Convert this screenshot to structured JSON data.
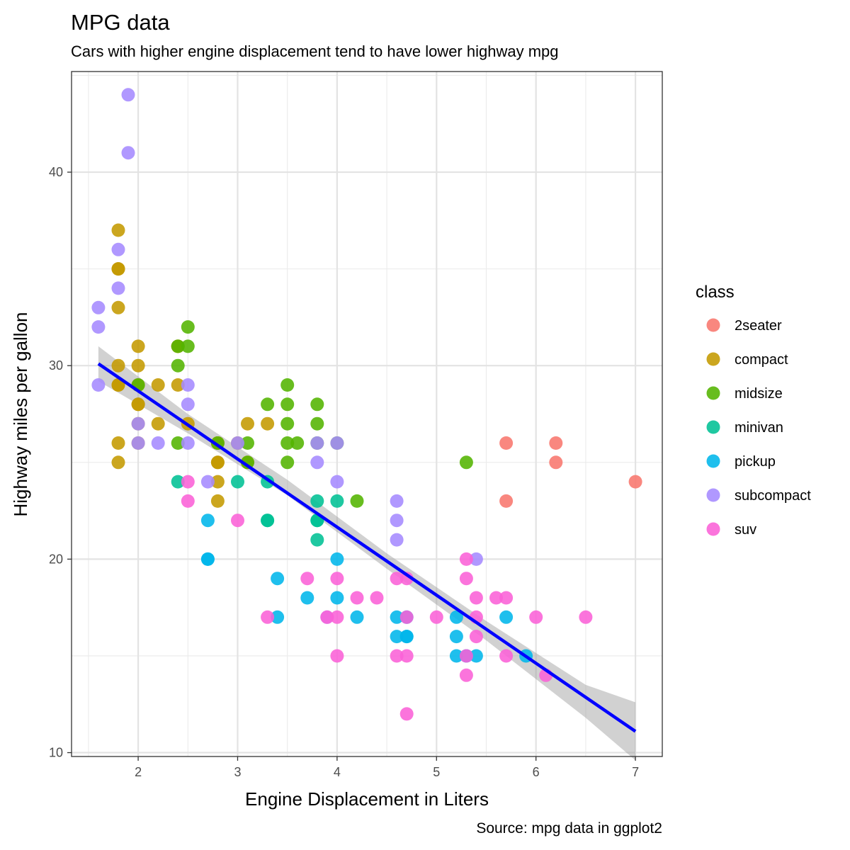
{
  "chart_data": {
    "type": "scatter",
    "title": "MPG data",
    "subtitle": "Cars with higher engine displacement tend to have lower highway mpg",
    "xlabel": "Engine Displacement in Liters",
    "ylabel": "Highway miles per gallon",
    "caption": "Source: mpg data in ggplot2",
    "xlim": [
      1.33,
      7.27
    ],
    "ylim": [
      9.8,
      45.2
    ],
    "x_ticks": [
      2,
      3,
      4,
      5,
      6,
      7
    ],
    "y_ticks": [
      10,
      20,
      30,
      40
    ],
    "grid": true,
    "legend": {
      "title": "class",
      "position": "right",
      "entries": [
        {
          "name": "2seater",
          "color": "#F8766D"
        },
        {
          "name": "compact",
          "color": "#C49A00"
        },
        {
          "name": "midsize",
          "color": "#53B400"
        },
        {
          "name": "minivan",
          "color": "#00C094"
        },
        {
          "name": "pickup",
          "color": "#00B6EB"
        },
        {
          "name": "subcompact",
          "color": "#A58AFF"
        },
        {
          "name": "suv",
          "color": "#FB61D7"
        }
      ]
    },
    "series": [
      {
        "name": "2seater",
        "color": "#F8766D",
        "points": [
          [
            5.7,
            26
          ],
          [
            5.7,
            23
          ],
          [
            6.2,
            26
          ],
          [
            6.2,
            25
          ],
          [
            7.0,
            24
          ]
        ]
      },
      {
        "name": "compact",
        "color": "#C49A00",
        "points": [
          [
            1.8,
            29
          ],
          [
            1.8,
            29
          ],
          [
            2.0,
            31
          ],
          [
            2.0,
            30
          ],
          [
            2.8,
            26
          ],
          [
            2.8,
            26
          ],
          [
            3.1,
            27
          ],
          [
            1.8,
            26
          ],
          [
            1.8,
            25
          ],
          [
            2.0,
            28
          ],
          [
            2.0,
            27
          ],
          [
            2.8,
            25
          ],
          [
            2.8,
            25
          ],
          [
            3.1,
            25
          ],
          [
            2.2,
            27
          ],
          [
            2.2,
            29
          ],
          [
            2.4,
            31
          ],
          [
            2.4,
            31
          ],
          [
            3.0,
            26
          ],
          [
            3.3,
            27
          ],
          [
            1.8,
            35
          ],
          [
            1.8,
            37
          ],
          [
            1.8,
            35
          ],
          [
            2.4,
            29
          ],
          [
            2.5,
            27
          ],
          [
            2.8,
            24
          ],
          [
            2.8,
            23
          ],
          [
            2.0,
            29
          ],
          [
            2.0,
            26
          ],
          [
            2.0,
            28
          ],
          [
            1.8,
            33
          ],
          [
            1.8,
            30
          ]
        ]
      },
      {
        "name": "midsize",
        "color": "#53B400",
        "points": [
          [
            3.1,
            26
          ],
          [
            2.4,
            30
          ],
          [
            2.4,
            31
          ],
          [
            3.5,
            26
          ],
          [
            2.5,
            32
          ],
          [
            2.5,
            31
          ],
          [
            3.5,
            29
          ],
          [
            3.5,
            28
          ],
          [
            3.8,
            28
          ],
          [
            3.8,
            27
          ],
          [
            3.8,
            26
          ],
          [
            4.2,
            23
          ],
          [
            5.3,
            25
          ],
          [
            2.4,
            26
          ],
          [
            3.5,
            27
          ],
          [
            3.5,
            25
          ],
          [
            3.6,
            26
          ],
          [
            3.3,
            28
          ],
          [
            4.0,
            26
          ],
          [
            2.8,
            26
          ],
          [
            3.1,
            25
          ],
          [
            2.0,
            29
          ]
        ]
      },
      {
        "name": "minivan",
        "color": "#00C094",
        "points": [
          [
            2.4,
            24
          ],
          [
            3.0,
            24
          ],
          [
            3.3,
            24
          ],
          [
            3.3,
            22
          ],
          [
            3.3,
            22
          ],
          [
            3.8,
            22
          ],
          [
            3.8,
            23
          ],
          [
            3.8,
            21
          ],
          [
            4.0,
            23
          ],
          [
            3.8,
            22
          ]
        ]
      },
      {
        "name": "pickup",
        "color": "#00B6EB",
        "points": [
          [
            2.7,
            20
          ],
          [
            2.7,
            20
          ],
          [
            2.7,
            22
          ],
          [
            3.4,
            17
          ],
          [
            3.4,
            19
          ],
          [
            3.7,
            18
          ],
          [
            4.0,
            20
          ],
          [
            4.0,
            18
          ],
          [
            4.2,
            17
          ],
          [
            4.6,
            17
          ],
          [
            4.6,
            16
          ],
          [
            4.7,
            16
          ],
          [
            4.7,
            17
          ],
          [
            4.7,
            16
          ],
          [
            5.2,
            16
          ],
          [
            5.2,
            15
          ],
          [
            5.4,
            15
          ],
          [
            5.7,
            17
          ],
          [
            5.9,
            15
          ],
          [
            5.3,
            15
          ],
          [
            5.2,
            17
          ]
        ]
      },
      {
        "name": "subcompact",
        "color": "#A58AFF",
        "points": [
          [
            1.9,
            44
          ],
          [
            1.9,
            41
          ],
          [
            1.6,
            33
          ],
          [
            1.6,
            32
          ],
          [
            1.6,
            29
          ],
          [
            1.8,
            36
          ],
          [
            1.8,
            34
          ],
          [
            2.0,
            27
          ],
          [
            2.0,
            26
          ],
          [
            2.2,
            26
          ],
          [
            2.5,
            29
          ],
          [
            2.5,
            28
          ],
          [
            2.5,
            26
          ],
          [
            2.7,
            24
          ],
          [
            3.0,
            26
          ],
          [
            3.8,
            25
          ],
          [
            3.8,
            26
          ],
          [
            4.0,
            26
          ],
          [
            4.0,
            24
          ],
          [
            4.6,
            23
          ],
          [
            4.6,
            22
          ],
          [
            4.6,
            21
          ],
          [
            5.4,
            20
          ],
          [
            3.9,
            17
          ]
        ]
      },
      {
        "name": "suv",
        "color": "#FB61D7",
        "points": [
          [
            2.5,
            24
          ],
          [
            2.5,
            23
          ],
          [
            3.0,
            22
          ],
          [
            3.3,
            17
          ],
          [
            3.7,
            19
          ],
          [
            3.9,
            17
          ],
          [
            4.0,
            19
          ],
          [
            4.0,
            17
          ],
          [
            4.0,
            15
          ],
          [
            4.2,
            18
          ],
          [
            4.4,
            18
          ],
          [
            4.6,
            19
          ],
          [
            4.6,
            15
          ],
          [
            4.7,
            19
          ],
          [
            4.7,
            17
          ],
          [
            4.7,
            15
          ],
          [
            4.7,
            12
          ],
          [
            5.0,
            17
          ],
          [
            5.3,
            20
          ],
          [
            5.3,
            19
          ],
          [
            5.3,
            15
          ],
          [
            5.3,
            14
          ],
          [
            5.4,
            18
          ],
          [
            5.4,
            17
          ],
          [
            5.4,
            16
          ],
          [
            5.6,
            18
          ],
          [
            5.7,
            18
          ],
          [
            5.7,
            15
          ],
          [
            6.0,
            17
          ],
          [
            6.1,
            14
          ],
          [
            6.5,
            17
          ]
        ]
      }
    ],
    "trend_line": {
      "type": "linear",
      "color": "#0000FF",
      "points": [
        [
          1.6,
          30.1
        ],
        [
          7.0,
          11.1
        ]
      ],
      "ribbon": {
        "color": "#999999",
        "points": [
          [
            1.6,
            29.2,
            31.0
          ],
          [
            2.5,
            26.5,
            27.5
          ],
          [
            3.5,
            23.3,
            24.1
          ],
          [
            4.5,
            19.5,
            20.3
          ],
          [
            5.5,
            15.8,
            16.8
          ],
          [
            6.5,
            11.8,
            13.5
          ],
          [
            7.0,
            9.6,
            12.6
          ]
        ]
      }
    }
  }
}
